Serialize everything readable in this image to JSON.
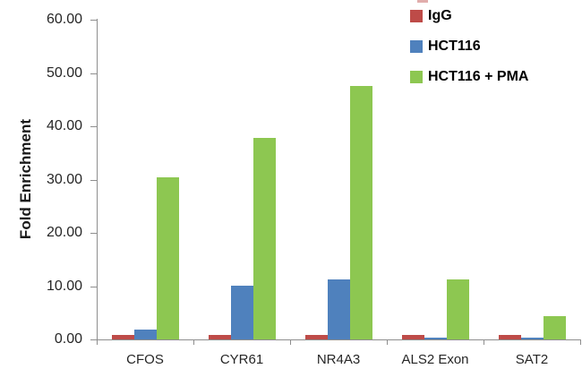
{
  "chart_data": {
    "type": "bar",
    "title": "",
    "ylabel": "Fold Enrichment",
    "xlabel": "",
    "categories": [
      "CFOS",
      "CYR61",
      "NR4A3",
      "ALS2 Exon",
      "SAT2"
    ],
    "series": [
      {
        "name": "IgG",
        "color": "#BE4B48",
        "values": [
          0.9,
          0.9,
          0.9,
          0.9,
          0.9
        ]
      },
      {
        "name": "HCT116",
        "color": "#4F81BD",
        "values": [
          1.9,
          10.1,
          11.3,
          0.4,
          0.4
        ]
      },
      {
        "name": "HCT116 + PMA",
        "color": "#8DC751",
        "values": [
          30.5,
          37.8,
          47.5,
          11.2,
          4.3
        ]
      }
    ],
    "ylim": [
      0,
      60
    ],
    "ytick_step": 10,
    "ytick_labels": [
      "0.00",
      "10.00",
      "20.00",
      "30.00",
      "40.00",
      "50.00",
      "60.00"
    ],
    "legend": {
      "position": "top-right",
      "entries": [
        "IgG",
        "HCT116",
        "HCT116 + PMA"
      ]
    },
    "grid": false,
    "axis_color": "#8E8E8E",
    "text_color": "#262626"
  }
}
